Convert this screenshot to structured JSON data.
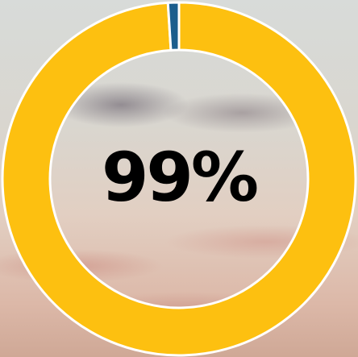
{
  "chart_data": {
    "type": "donut",
    "values": [
      99,
      1
    ],
    "value_labels": [
      "99%",
      null
    ],
    "colors": [
      "#fdc010",
      "#1b5e8c"
    ]
  }
}
